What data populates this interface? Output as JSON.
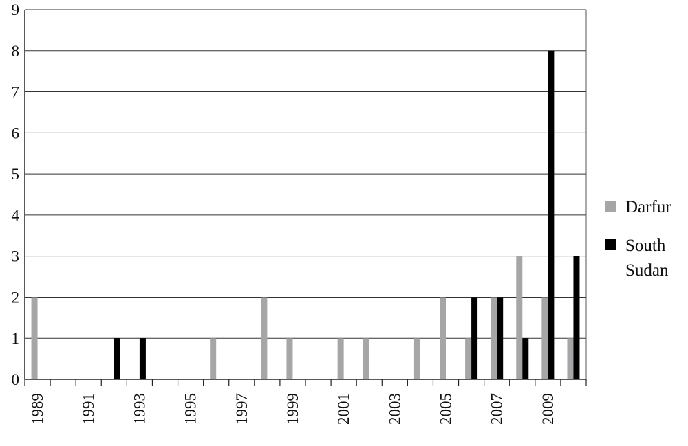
{
  "chart_data": {
    "type": "bar",
    "categories": [
      "1989",
      "1990",
      "1991",
      "1992",
      "1993",
      "1994",
      "1995",
      "1996",
      "1997",
      "1998",
      "1999",
      "2000",
      "2001",
      "2002",
      "2003",
      "2004",
      "2005",
      "2006",
      "2007",
      "2008",
      "2009",
      "2010"
    ],
    "x_tick_labels": [
      "1989",
      "1991",
      "1993",
      "1995",
      "1997",
      "1999",
      "2001",
      "2003",
      "2005",
      "2007",
      "2009"
    ],
    "series": [
      {
        "name": "Darfur",
        "color": "#a6a6a8",
        "values": [
          2,
          0,
          0,
          0,
          0,
          0,
          0,
          1,
          0,
          2,
          1,
          0,
          1,
          1,
          0,
          1,
          2,
          1,
          2,
          3,
          2,
          1
        ]
      },
      {
        "name": "South Sudan",
        "color": "#000000",
        "values": [
          0,
          0,
          0,
          1,
          1,
          0,
          0,
          0,
          0,
          0,
          0,
          0,
          0,
          0,
          0,
          0,
          0,
          2,
          2,
          1,
          8,
          3
        ]
      }
    ],
    "ylim": [
      0,
      9
    ],
    "y_ticks": [
      "0",
      "1",
      "2",
      "3",
      "4",
      "5",
      "6",
      "7",
      "8",
      "9"
    ],
    "grid": "horizontal",
    "legend": {
      "position": "right",
      "items": [
        {
          "lines": [
            "Darfur"
          ],
          "color": "#a6a6a8"
        },
        {
          "lines": [
            "South",
            "Sudan"
          ],
          "color": "#000000"
        }
      ]
    },
    "title": "",
    "xlabel": "",
    "ylabel": ""
  }
}
